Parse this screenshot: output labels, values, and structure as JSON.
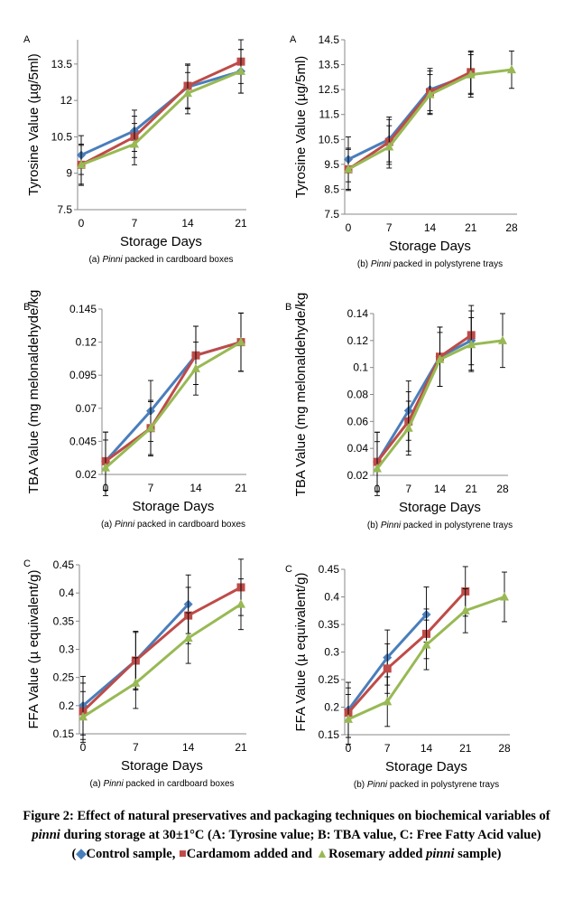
{
  "colors": {
    "control": "#4a7ebb",
    "cardamom": "#be4b48",
    "rosemary": "#98b954"
  },
  "caption": {
    "figure_label": "Figure 2:",
    "text1": " Effect of natural preservatives and packaging techniques on biochemical variables of ",
    "em1": "pinni",
    "text2": " during storage at 30±1°C (A: Tyrosine value; B: TBA value, C: Free Fatty Acid value) (",
    "legend_control": "Control sample,",
    "legend_cardamom": "Cardamom added and ",
    "legend_rosemary": "Rosemary added ",
    "em2": "pinni",
    "text3": " sample)"
  },
  "chart_data": [
    {
      "type": "line",
      "panel_letter": "A",
      "xlabel": "Storage Days",
      "ylabel": "Tyrosine Value (µg/5ml)",
      "subtitle_prefix": "(a) ",
      "subtitle_em": "Pinni",
      "subtitle_suffix": " packed in cardboard boxes",
      "x": [
        0,
        7,
        14,
        21
      ],
      "ylim": [
        7.5,
        14.5
      ],
      "yticks": [
        "7.5",
        "9",
        "10.5",
        "12",
        "13.5"
      ],
      "series": [
        {
          "key": "control",
          "values": [
            9.75,
            10.75,
            12.55,
            13.2
          ],
          "err": [
            0.8,
            0.85,
            0.9,
            0.9
          ]
        },
        {
          "key": "cardamom",
          "values": [
            9.35,
            10.5,
            12.6,
            13.6
          ],
          "err": [
            0.85,
            0.85,
            0.9,
            0.9
          ]
        },
        {
          "key": "rosemary",
          "values": [
            9.35,
            10.2,
            12.3,
            13.2
          ],
          "err": [
            0.8,
            0.85,
            0.85,
            0.9
          ]
        }
      ]
    },
    {
      "type": "line",
      "panel_letter": "A",
      "xlabel": "Storage Days",
      "ylabel": "Tyrosine Value (µg/5ml)",
      "subtitle_prefix": "(b) ",
      "subtitle_em": "Pinni",
      "subtitle_suffix": " packed in polystyrene trays",
      "x": [
        0,
        7,
        14,
        21,
        28
      ],
      "ylim": [
        7.5,
        14.5
      ],
      "yticks": [
        "7.5",
        "8.5",
        "9.5",
        "10.5",
        "11.5",
        "12.5",
        "13.5",
        "14.5"
      ],
      "series": [
        {
          "key": "control",
          "values": [
            9.7,
            10.5,
            12.5,
            13.1,
            null
          ],
          "err": [
            0.9,
            0.9,
            0.85,
            0.9,
            null
          ]
        },
        {
          "key": "cardamom",
          "values": [
            9.3,
            10.4,
            12.4,
            13.2,
            null
          ],
          "err": [
            0.85,
            0.9,
            0.85,
            0.85,
            null
          ]
        },
        {
          "key": "rosemary",
          "values": [
            9.3,
            10.2,
            12.3,
            13.1,
            13.3
          ],
          "err": [
            0.8,
            0.85,
            0.8,
            0.8,
            0.75
          ]
        }
      ]
    },
    {
      "type": "line",
      "panel_letter": "B",
      "xlabel": "Storage Days",
      "ylabel": "TBA Value (mg melonaldehyde/kg",
      "subtitle_prefix": "(a) ",
      "subtitle_em": "Pinni",
      "subtitle_suffix": " packed in cardboard boxes",
      "x": [
        0,
        7,
        14,
        21
      ],
      "ylim": [
        0.02,
        0.145
      ],
      "yticks": [
        "0.02",
        "0.045",
        "0.07",
        "0.095",
        "0.12",
        "0.145"
      ],
      "series": [
        {
          "key": "control",
          "values": [
            0.03,
            0.068,
            0.11,
            0.12
          ],
          "err": [
            0.022,
            0.023,
            0.022,
            0.022
          ]
        },
        {
          "key": "cardamom",
          "values": [
            0.03,
            0.055,
            0.11,
            0.12
          ],
          "err": [
            0.022,
            0.021,
            0.022,
            0.022
          ]
        },
        {
          "key": "rosemary",
          "values": [
            0.025,
            0.055,
            0.1,
            0.12
          ],
          "err": [
            0.021,
            0.02,
            0.02,
            0.022
          ]
        }
      ]
    },
    {
      "type": "line",
      "panel_letter": "B",
      "xlabel": "Storage Days",
      "ylabel": "TBA Value (mg melonaldehyde/kg",
      "subtitle_prefix": "(b) ",
      "subtitle_em": "Pinni",
      "subtitle_suffix": " packed in polystyrene trays",
      "x": [
        0,
        7,
        14,
        21,
        28
      ],
      "ylim": [
        0.02,
        0.14
      ],
      "yticks": [
        "0.02",
        "0.04",
        "0.06",
        "0.08",
        "0.1",
        "0.12",
        "0.14"
      ],
      "series": [
        {
          "key": "control",
          "values": [
            0.03,
            0.068,
            0.108,
            0.12,
            null
          ],
          "err": [
            0.022,
            0.022,
            0.022,
            0.022,
            null
          ]
        },
        {
          "key": "cardamom",
          "values": [
            0.03,
            0.06,
            0.108,
            0.124,
            null
          ],
          "err": [
            0.022,
            0.022,
            0.022,
            0.022,
            null
          ]
        },
        {
          "key": "rosemary",
          "values": [
            0.025,
            0.055,
            0.106,
            0.117,
            0.12
          ],
          "err": [
            0.02,
            0.02,
            0.02,
            0.02,
            0.02
          ]
        }
      ]
    },
    {
      "type": "line",
      "panel_letter": "C",
      "xlabel": "Storage Days",
      "ylabel": "FFA Value (µ equivalent/g)",
      "subtitle_prefix": "(a) ",
      "subtitle_em": "Pinni",
      "subtitle_suffix": " packed in cardboard boxes",
      "x": [
        0,
        7,
        14,
        21
      ],
      "ylim": [
        0.15,
        0.45
      ],
      "yticks": [
        "0.15",
        "0.2",
        "0.25",
        "0.3",
        "0.35",
        "0.4",
        "0.45"
      ],
      "series": [
        {
          "key": "control",
          "values": [
            0.2,
            0.28,
            0.38,
            null
          ],
          "err": [
            0.052,
            0.052,
            0.052,
            null
          ]
        },
        {
          "key": "cardamom",
          "values": [
            0.19,
            0.28,
            0.36,
            0.41
          ],
          "err": [
            0.05,
            0.05,
            0.05,
            0.05
          ]
        },
        {
          "key": "rosemary",
          "values": [
            0.18,
            0.24,
            0.32,
            0.38
          ],
          "err": [
            0.045,
            0.045,
            0.045,
            0.045
          ]
        }
      ]
    },
    {
      "type": "line",
      "panel_letter": "C",
      "xlabel": "Storage Days",
      "ylabel": "FFA Value (µ equivalent/g)",
      "subtitle_prefix": "(b) ",
      "subtitle_em": "Pinni",
      "subtitle_suffix": " packed in polystyrene trays",
      "x": [
        0,
        7,
        14,
        21,
        28
      ],
      "ylim": [
        0.15,
        0.45
      ],
      "yticks": [
        "0.15",
        "0.2",
        "0.25",
        "0.3",
        "0.35",
        "0.4",
        "0.45"
      ],
      "series": [
        {
          "key": "control",
          "values": [
            0.195,
            0.29,
            0.368,
            null,
            null
          ],
          "err": [
            0.05,
            0.05,
            0.05,
            null,
            null
          ]
        },
        {
          "key": "cardamom",
          "values": [
            0.19,
            0.27,
            0.333,
            0.41,
            null
          ],
          "err": [
            0.045,
            0.045,
            0.045,
            0.045,
            null
          ]
        },
        {
          "key": "rosemary",
          "values": [
            0.178,
            0.21,
            0.313,
            0.375,
            0.4
          ],
          "err": [
            0.045,
            0.045,
            0.045,
            0.04,
            0.045
          ]
        }
      ]
    }
  ]
}
